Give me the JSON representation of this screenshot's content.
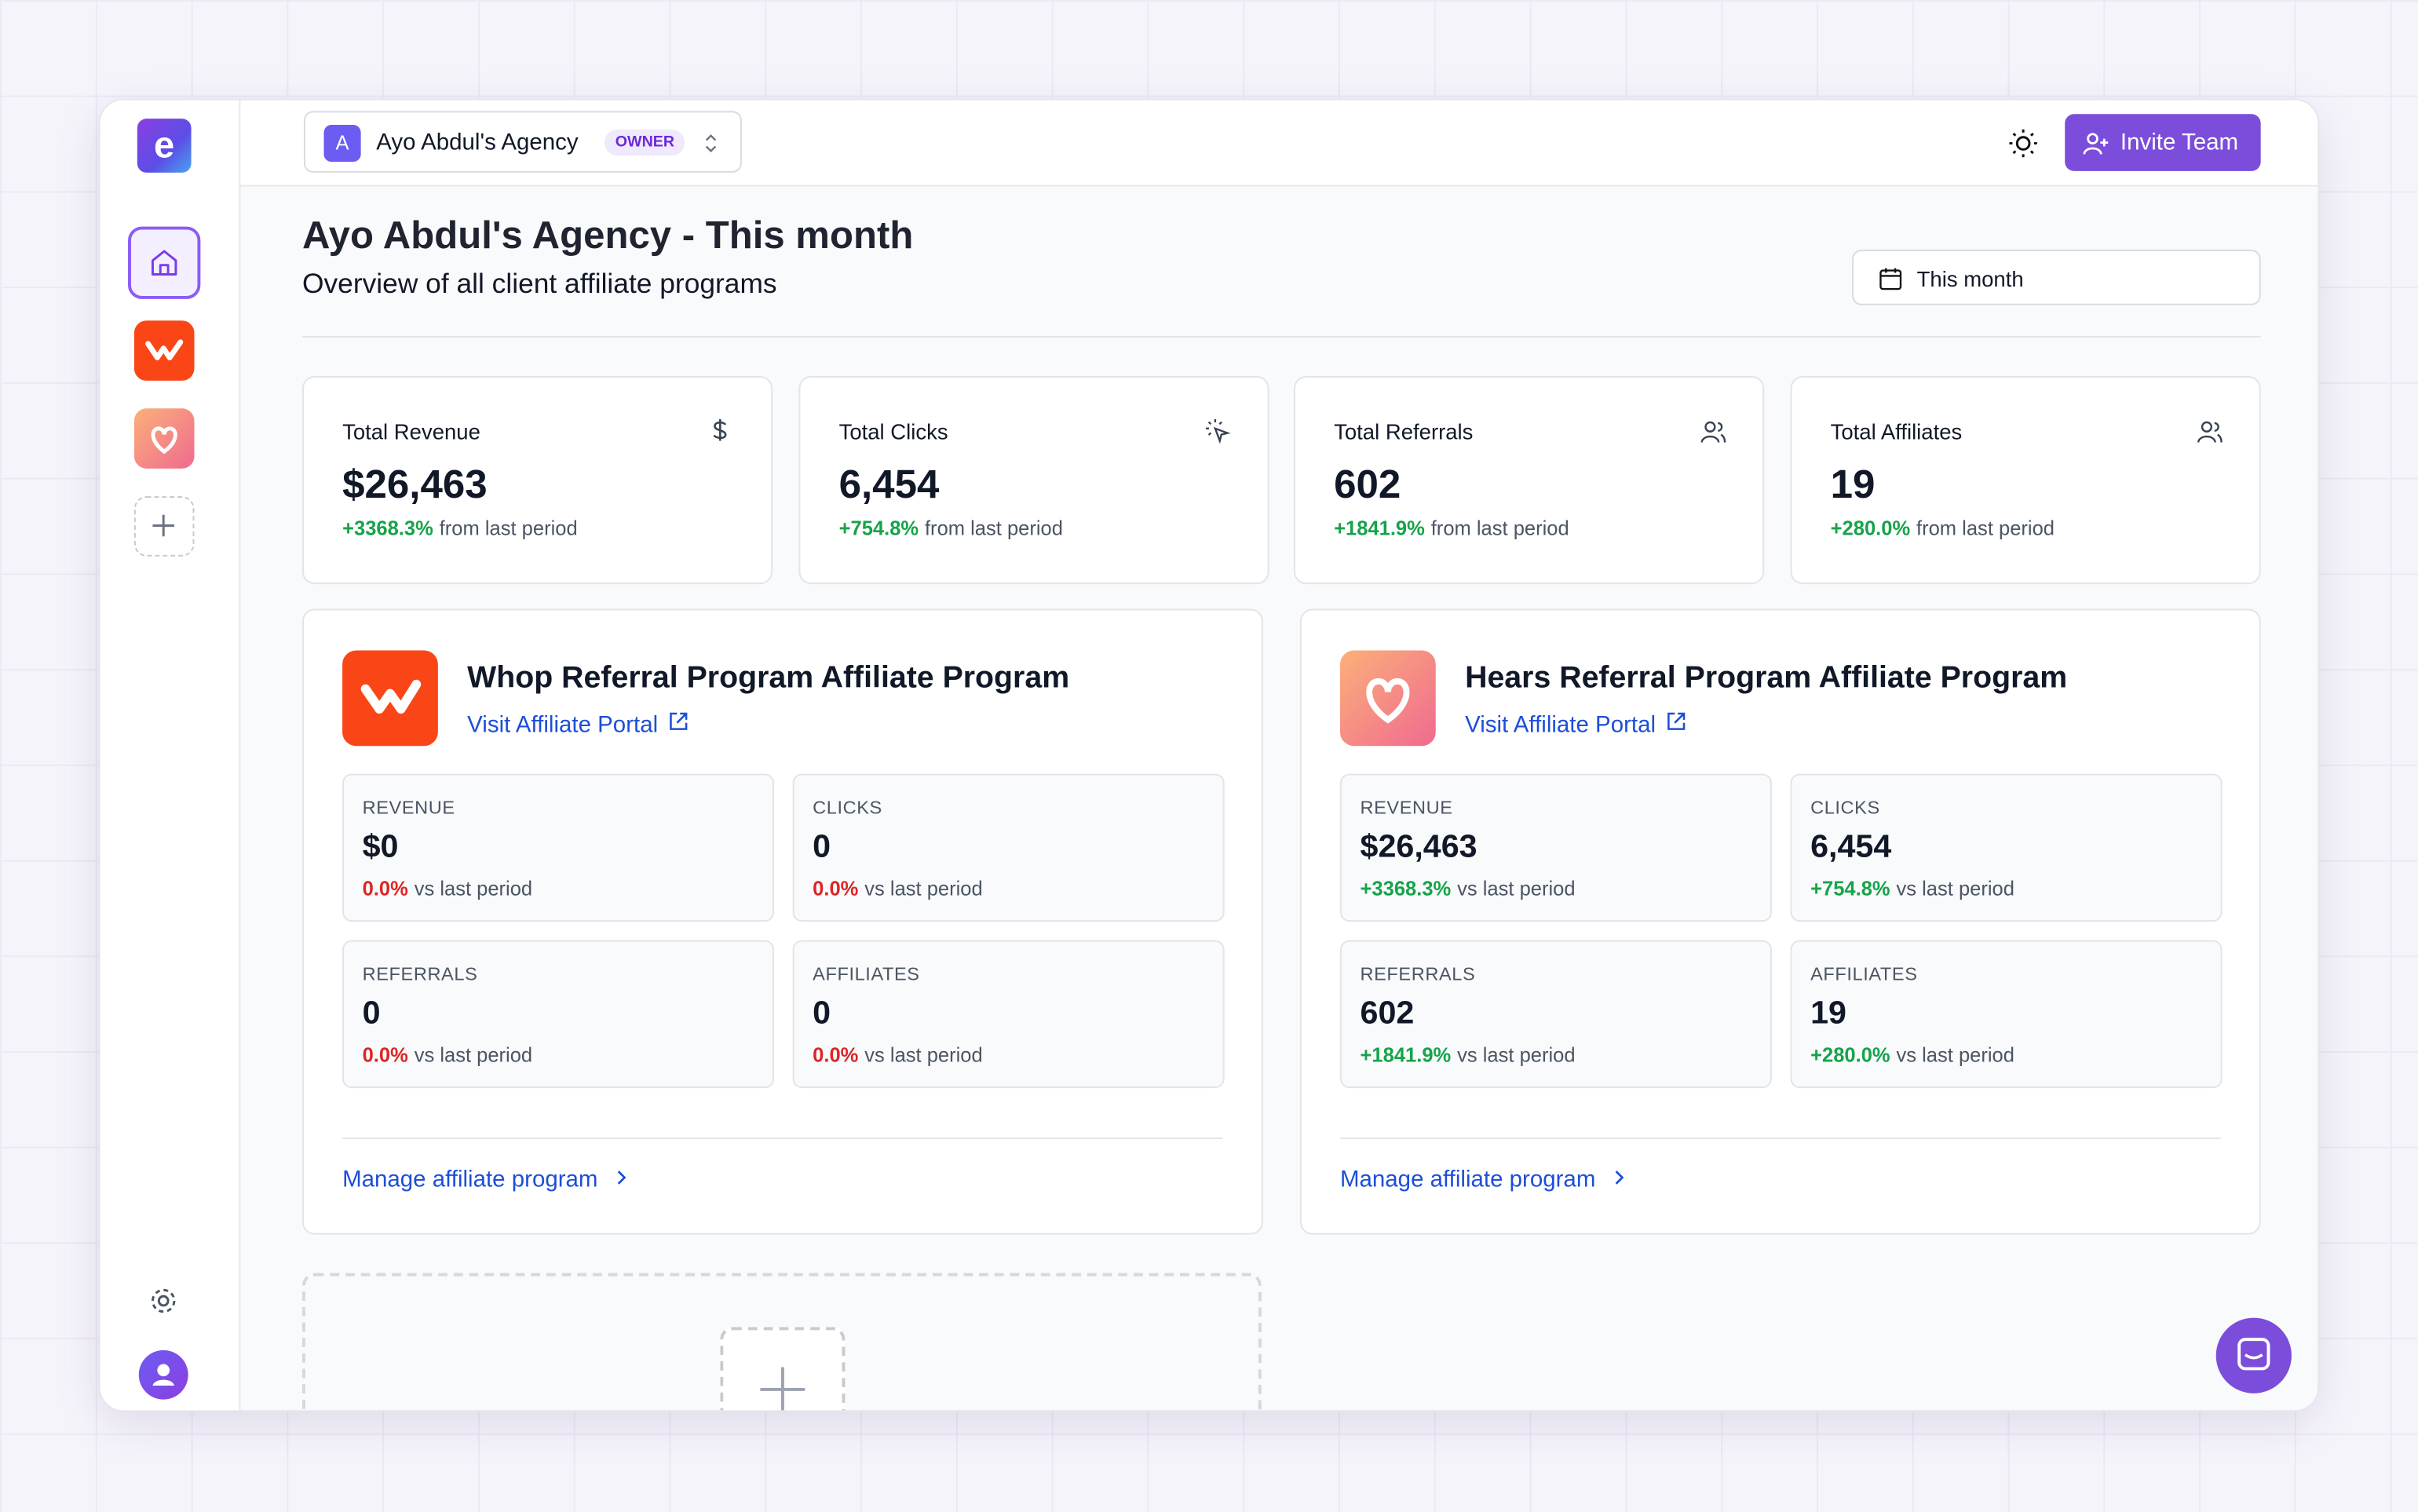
{
  "workspace": {
    "initial": "A",
    "name": "Ayo Abdul's Agency",
    "role": "OWNER"
  },
  "invite_button": "Invite Team",
  "page": {
    "title": "Ayo Abdul's Agency - This month",
    "subtitle": "Overview of all client affiliate programs",
    "date_filter": "This month"
  },
  "stats": [
    {
      "label": "Total Revenue",
      "value": "$26,463",
      "change": "+3368.3%",
      "note": "from last period"
    },
    {
      "label": "Total Clicks",
      "value": "6,454",
      "change": "+754.8%",
      "note": "from last period"
    },
    {
      "label": "Total Referrals",
      "value": "602",
      "change": "+1841.9%",
      "note": "from last period"
    },
    {
      "label": "Total Affiliates",
      "value": "19",
      "change": "+280.0%",
      "note": "from last period"
    }
  ],
  "programs": [
    {
      "name": "Whop Referral Program Affiliate Program",
      "portal_link": "Visit Affiliate Portal",
      "manage_link": "Manage affiliate program",
      "metrics": [
        {
          "label": "REVENUE",
          "value": "$0",
          "change": "0.0%",
          "note": "vs last period"
        },
        {
          "label": "CLICKS",
          "value": "0",
          "change": "0.0%",
          "note": "vs last period"
        },
        {
          "label": "REFERRALS",
          "value": "0",
          "change": "0.0%",
          "note": "vs last period"
        },
        {
          "label": "AFFILIATES",
          "value": "0",
          "change": "0.0%",
          "note": "vs last period"
        }
      ]
    },
    {
      "name": "Hears Referral Program Affiliate Program",
      "portal_link": "Visit Affiliate Portal",
      "manage_link": "Manage affiliate program",
      "metrics": [
        {
          "label": "REVENUE",
          "value": "$26,463",
          "change": "+3368.3%",
          "note": "vs last period"
        },
        {
          "label": "CLICKS",
          "value": "6,454",
          "change": "+754.8%",
          "note": "vs last period"
        },
        {
          "label": "REFERRALS",
          "value": "602",
          "change": "+1841.9%",
          "note": "vs last period"
        },
        {
          "label": "AFFILIATES",
          "value": "19",
          "change": "+280.0%",
          "note": "vs last period"
        }
      ]
    }
  ]
}
